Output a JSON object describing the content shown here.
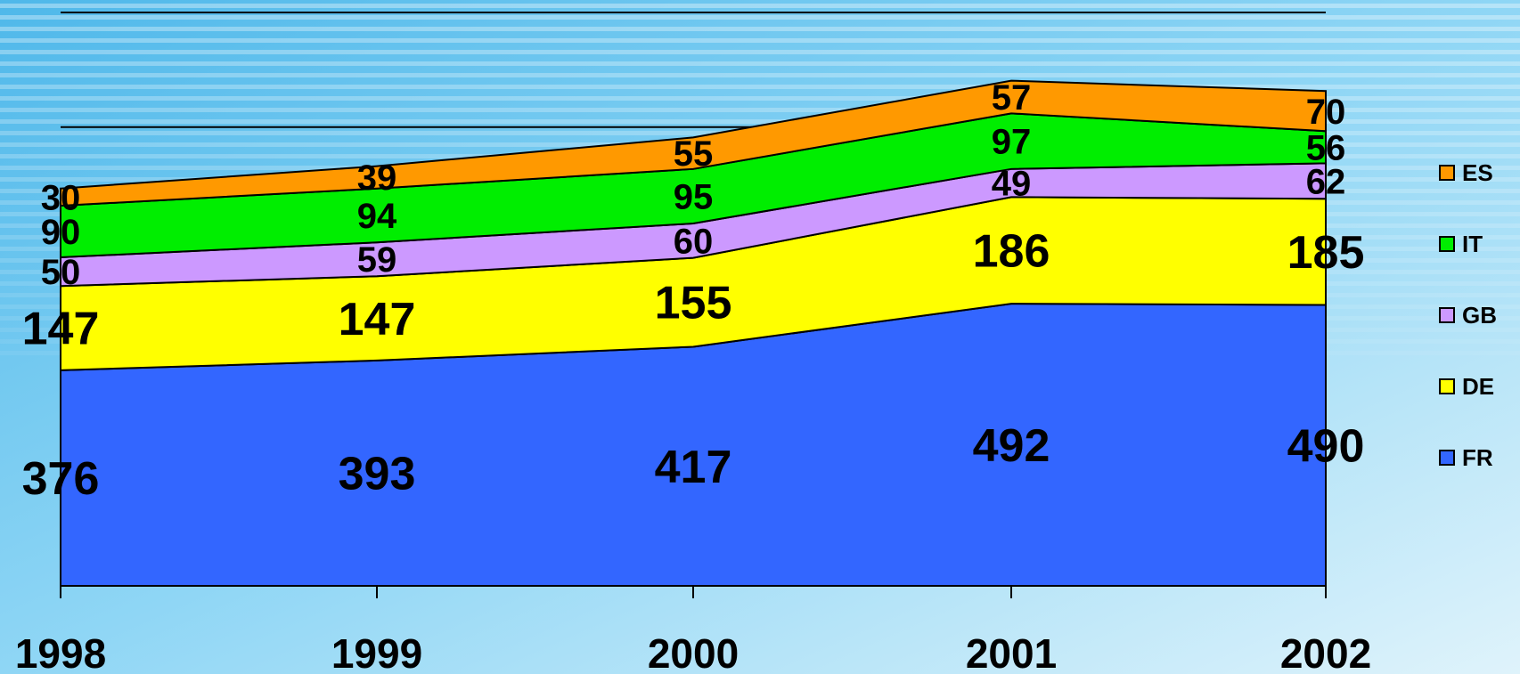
{
  "chart_data": {
    "type": "area",
    "stacked": true,
    "categories": [
      "1998",
      "1999",
      "2000",
      "2001",
      "2002"
    ],
    "series": [
      {
        "name": "FR",
        "color": "#3366ff",
        "values": [
          376,
          393,
          417,
          492,
          490
        ]
      },
      {
        "name": "DE",
        "color": "#ffff00",
        "values": [
          147,
          147,
          155,
          186,
          185
        ]
      },
      {
        "name": "GB",
        "color": "#cc99ff",
        "values": [
          50,
          59,
          60,
          49,
          62
        ]
      },
      {
        "name": "IT",
        "color": "#00ee00",
        "values": [
          90,
          94,
          95,
          97,
          56
        ]
      },
      {
        "name": "ES",
        "color": "#ff9900",
        "values": [
          30,
          39,
          55,
          57,
          70
        ]
      }
    ],
    "legend": [
      "ES",
      "IT",
      "GB",
      "DE",
      "FR"
    ],
    "legend_position": "right",
    "ylim": [
      0,
      1000
    ],
    "gridlines": [
      800,
      1000
    ]
  }
}
